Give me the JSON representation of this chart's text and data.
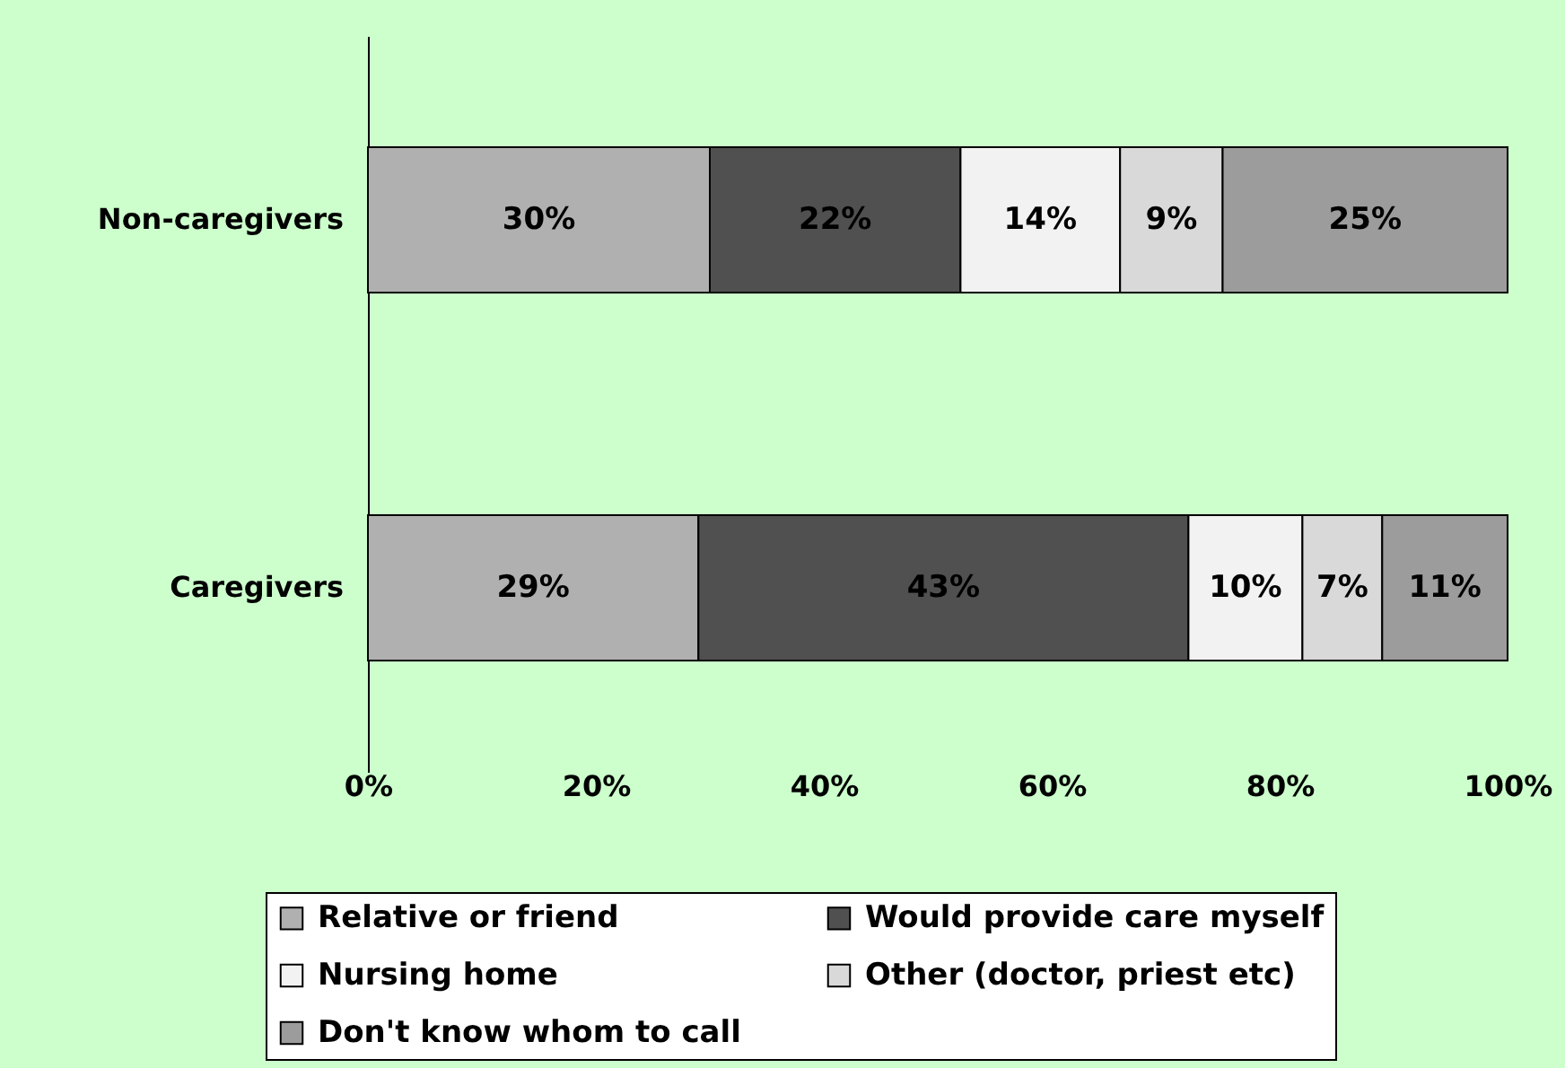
{
  "chart_data": {
    "type": "bar",
    "orientation": "horizontal",
    "stacked": true,
    "categories": [
      "Non-caregivers",
      "Caregivers"
    ],
    "xlim": [
      0,
      100
    ],
    "xticks": [
      {
        "value": 0,
        "label": "0%"
      },
      {
        "value": 20,
        "label": "20%"
      },
      {
        "value": 40,
        "label": "40%"
      },
      {
        "value": 60,
        "label": "60%"
      },
      {
        "value": 80,
        "label": "80%"
      },
      {
        "value": 100,
        "label": "100%"
      }
    ],
    "legend": "bottom",
    "series": [
      {
        "name": "Relative or friend",
        "color": "#b0b0b0",
        "values": [
          30,
          29
        ],
        "value_labels": [
          "30%",
          "29%"
        ]
      },
      {
        "name": "Would provide care myself",
        "color": "#505050",
        "values": [
          22,
          43
        ],
        "value_labels": [
          "22%",
          "43%"
        ]
      },
      {
        "name": "Nursing home",
        "color": "#f2f2f2",
        "values": [
          14,
          10
        ],
        "value_labels": [
          "14%",
          "10%"
        ]
      },
      {
        "name": "Other (doctor, priest etc)",
        "color": "#d9d9d9",
        "values": [
          9,
          7
        ],
        "value_labels": [
          "9%",
          "7%"
        ]
      },
      {
        "name": "Don't know whom to call",
        "color": "#9c9c9c",
        "values": [
          25,
          11
        ],
        "value_labels": [
          "25%",
          "11%"
        ]
      }
    ]
  }
}
